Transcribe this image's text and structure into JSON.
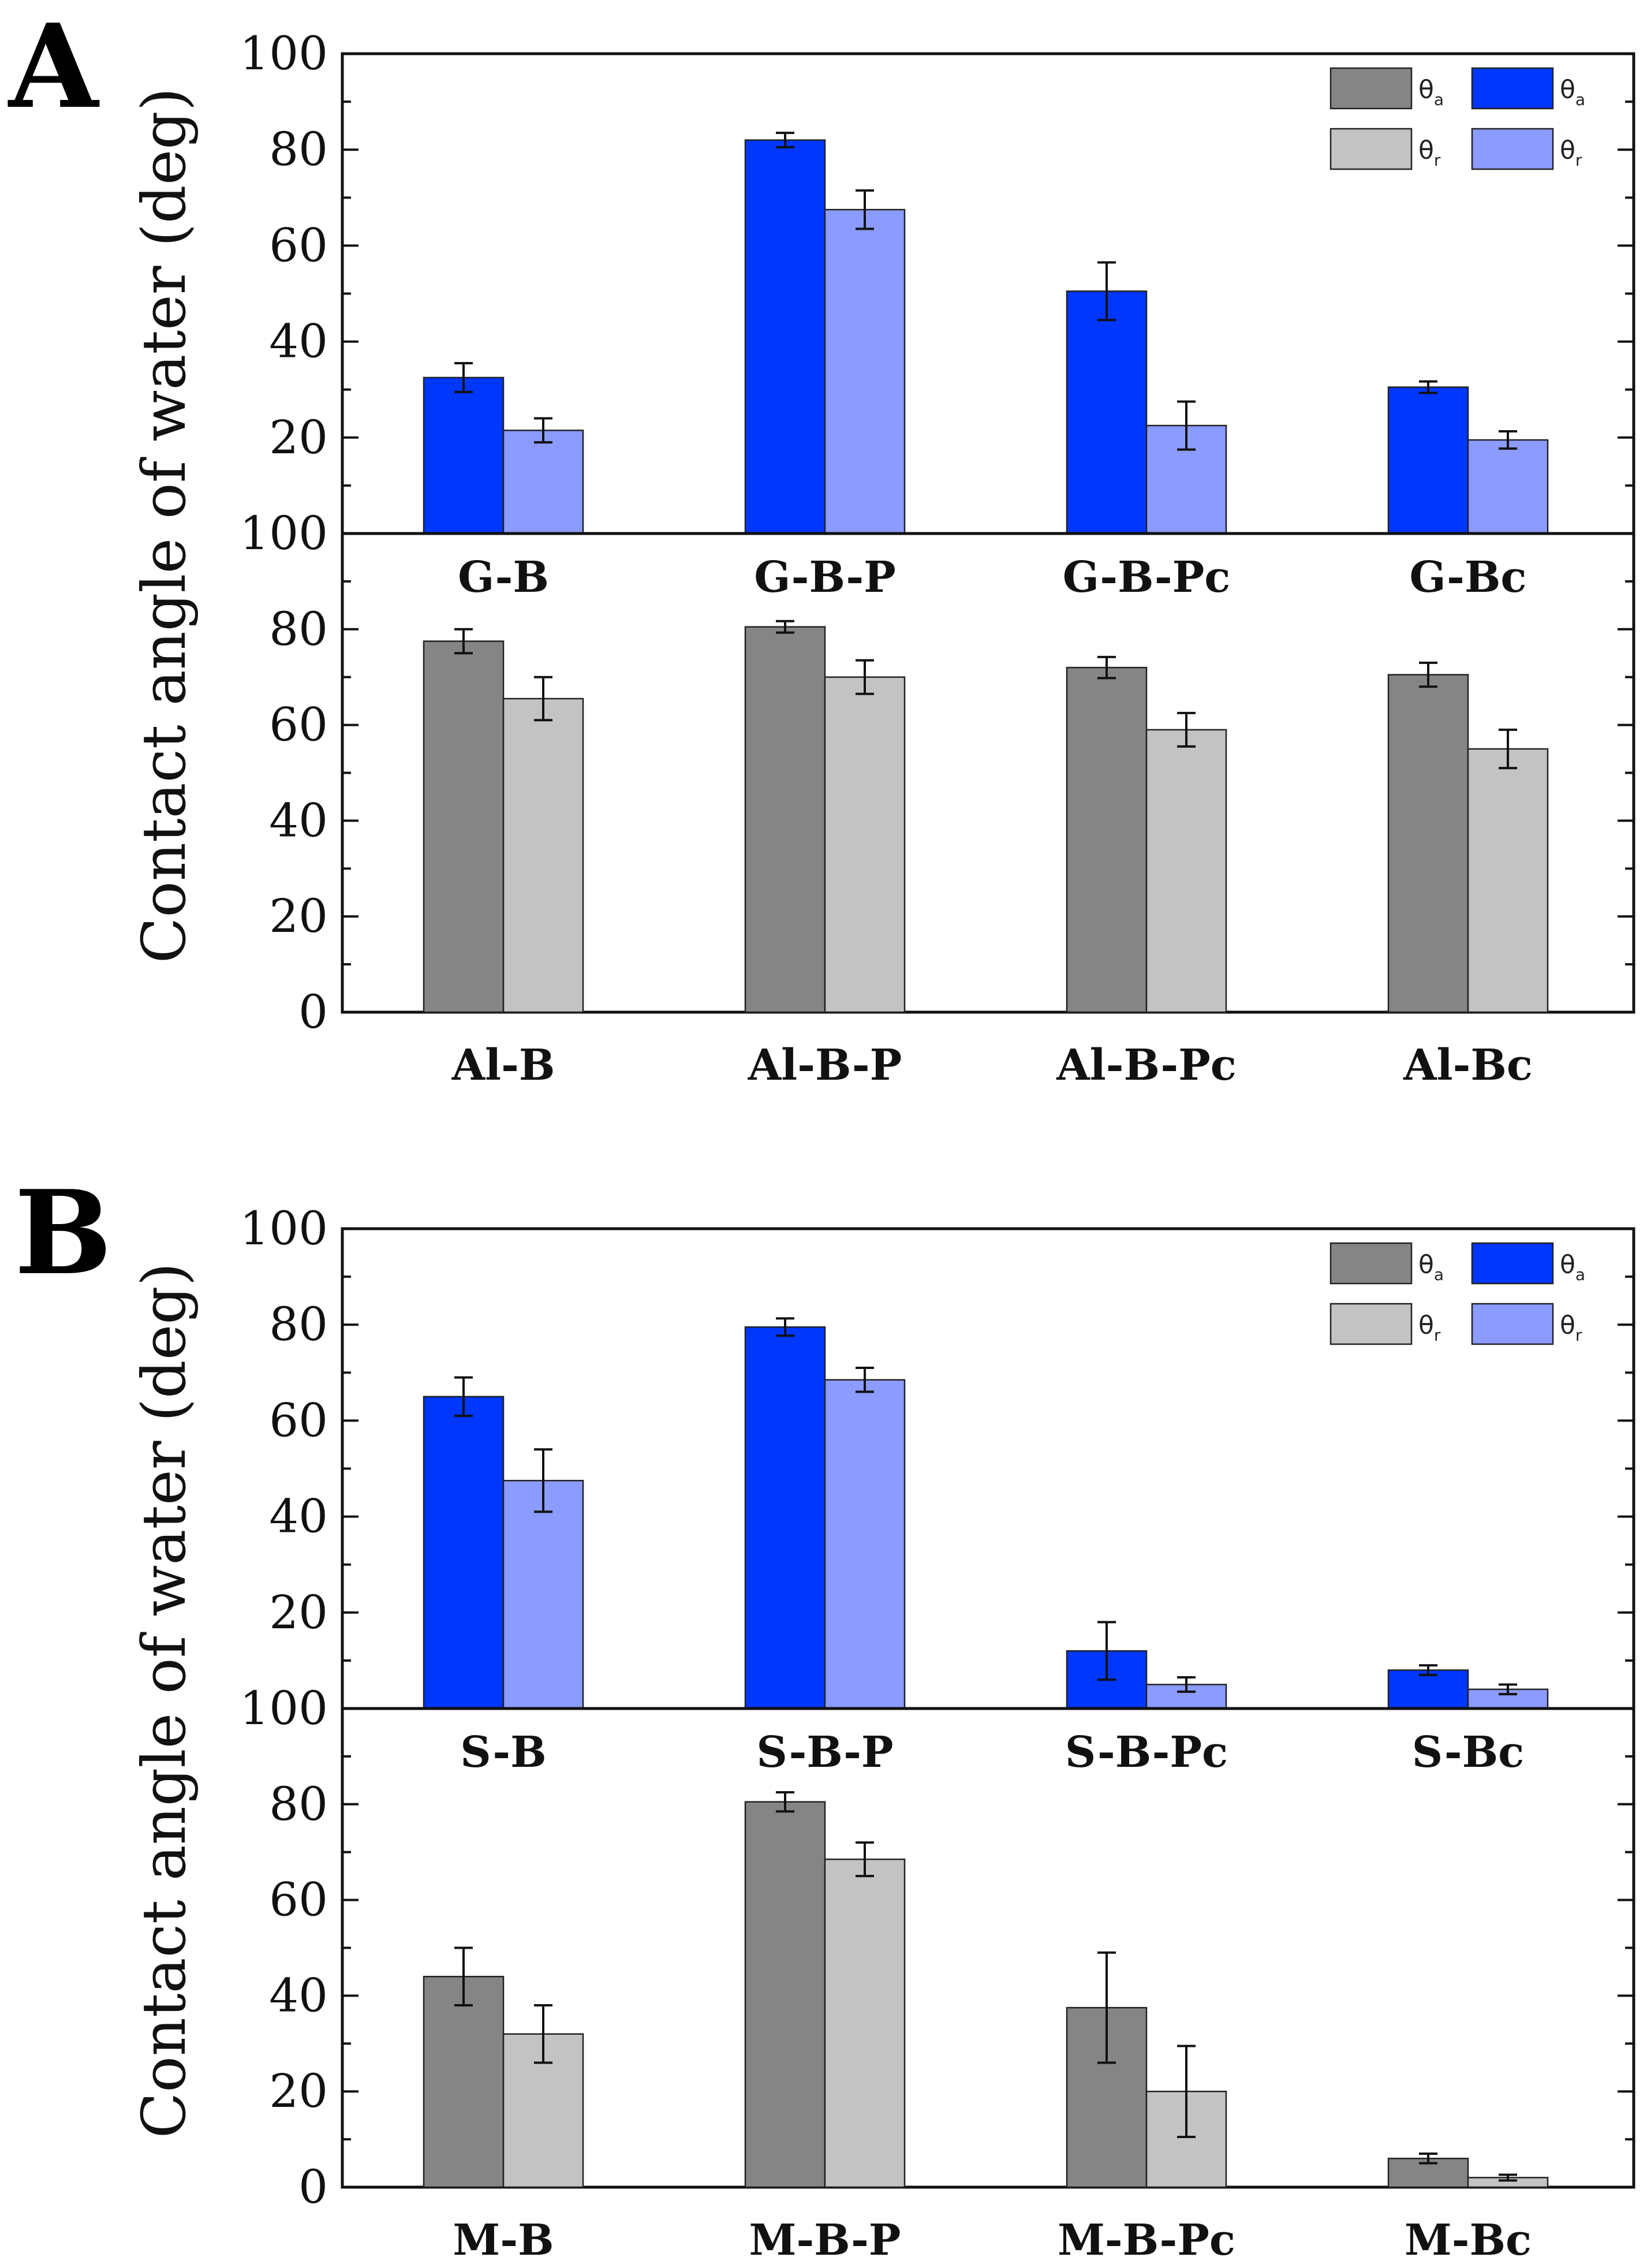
{
  "colors": {
    "dark_gray": "#858585",
    "light_gray": "#c3c3c3",
    "blue": "#0037ff",
    "light_blue": "#8b9bff"
  },
  "panels": [
    {
      "letter": "A",
      "ylabel": "Contact angle of water (deg)"
    },
    {
      "letter": "B",
      "ylabel": "Contact angle of water (deg)"
    }
  ],
  "legend": [
    {
      "symbol": "θ",
      "sub": "a",
      "color": "#858585"
    },
    {
      "symbol": "θ",
      "sub": "a",
      "color": "#0037ff"
    },
    {
      "symbol": "θ",
      "sub": "r",
      "color": "#c3c3c3"
    },
    {
      "symbol": "θ",
      "sub": "r",
      "color": "#8b9bff"
    }
  ],
  "chart_data": [
    {
      "type": "bar",
      "panel": "A",
      "position": "top",
      "ylim": [
        0,
        100
      ],
      "yticks": [
        "20",
        "40",
        "60",
        "80",
        "100"
      ],
      "categories": [
        "G-B",
        "G-B-P",
        "G-B-Pc",
        "G-Bc"
      ],
      "series": [
        {
          "name": "θa",
          "color": "#0037ff",
          "values": [
            32.5,
            82,
            50.5,
            30.5
          ],
          "errors": [
            3,
            1.5,
            6,
            1.2
          ]
        },
        {
          "name": "θr",
          "color": "#8b9bff",
          "values": [
            21.5,
            67.5,
            22.5,
            19.5
          ],
          "errors": [
            2.5,
            4,
            5,
            1.8
          ]
        }
      ]
    },
    {
      "type": "bar",
      "panel": "A",
      "position": "bottom",
      "ylim": [
        0,
        100
      ],
      "yticks": [
        "0",
        "20",
        "40",
        "60",
        "80",
        "100"
      ],
      "categories": [
        "Al-B",
        "Al-B-P",
        "Al-B-Pc",
        "Al-Bc"
      ],
      "series": [
        {
          "name": "θa",
          "color": "#858585",
          "values": [
            77.5,
            80.5,
            72,
            70.5
          ],
          "errors": [
            2.5,
            1.2,
            2.2,
            2.5
          ]
        },
        {
          "name": "θr",
          "color": "#c3c3c3",
          "values": [
            65.5,
            70,
            59,
            55
          ],
          "errors": [
            4.5,
            3.5,
            3.5,
            4
          ]
        }
      ]
    },
    {
      "type": "bar",
      "panel": "B",
      "position": "top",
      "ylim": [
        0,
        100
      ],
      "yticks": [
        "20",
        "40",
        "60",
        "80",
        "100"
      ],
      "categories": [
        "S-B",
        "S-B-P",
        "S-B-Pc",
        "S-Bc"
      ],
      "series": [
        {
          "name": "θa",
          "color": "#0037ff",
          "values": [
            65,
            79.5,
            12,
            8
          ],
          "errors": [
            4,
            1.8,
            6,
            1
          ]
        },
        {
          "name": "θr",
          "color": "#8b9bff",
          "values": [
            47.5,
            68.5,
            5,
            4
          ],
          "errors": [
            6.5,
            2.5,
            1.5,
            1
          ]
        }
      ]
    },
    {
      "type": "bar",
      "panel": "B",
      "position": "bottom",
      "ylim": [
        0,
        100
      ],
      "yticks": [
        "0",
        "20",
        "40",
        "60",
        "80",
        "100"
      ],
      "categories": [
        "M-B",
        "M-B-P",
        "M-B-Pc",
        "M-Bc"
      ],
      "series": [
        {
          "name": "θa",
          "color": "#858585",
          "values": [
            44,
            80.5,
            37.5,
            6
          ],
          "errors": [
            6,
            2,
            11.5,
            1
          ]
        },
        {
          "name": "θr",
          "color": "#c3c3c3",
          "values": [
            32,
            68.5,
            20,
            2
          ],
          "errors": [
            6,
            3.5,
            9.5,
            0.6
          ]
        }
      ]
    }
  ]
}
